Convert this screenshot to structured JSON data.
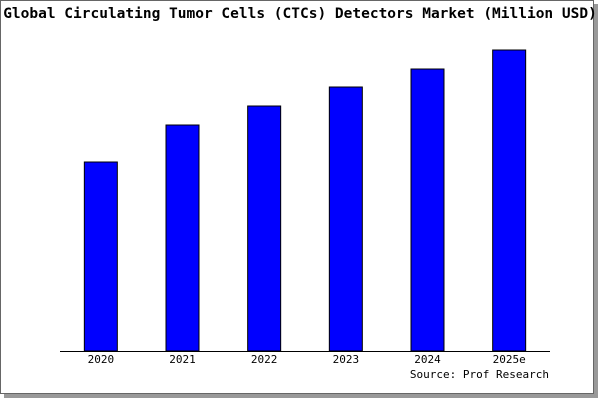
{
  "chart_data": {
    "type": "bar",
    "title": "Global Circulating Tumor Cells (CTCs) Detectors Market (Million USD)",
    "categories": [
      "2020",
      "2021",
      "2022",
      "2023",
      "2024",
      "2025e"
    ],
    "values": [
      189,
      226,
      245,
      264,
      282,
      301
    ],
    "color": "#0000ff",
    "ylim": [
      0,
      301
    ],
    "source": "Source: Prof Research"
  }
}
